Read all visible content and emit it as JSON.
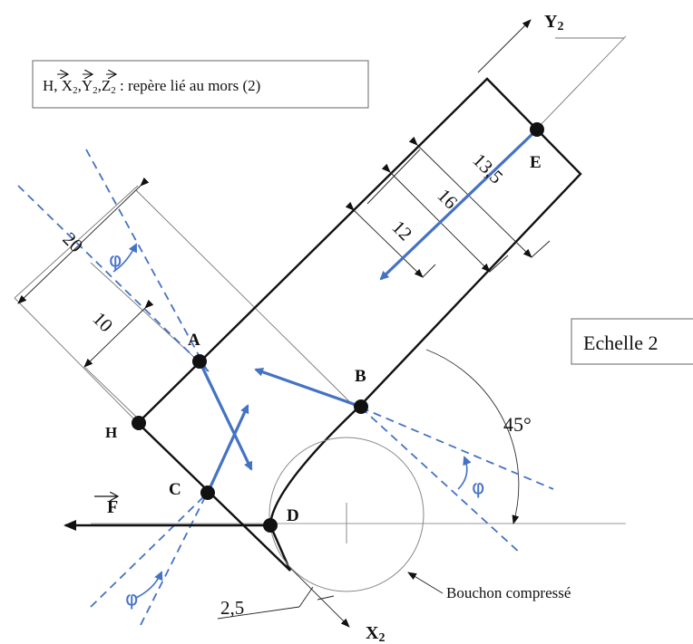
{
  "frame_label": "H, X2, Y2, Z2 : repère lié au mors (2)",
  "frame_label_parts": {
    "prefix": "H, ",
    "x": "X",
    "y": "Y",
    "z": "Z",
    "sub": "2",
    "suffix": " : repère lié au mors (2)"
  },
  "scale_label": "Echelle 2",
  "axes": {
    "y": "Y",
    "x": "X",
    "sub": "2"
  },
  "points": {
    "E": "E",
    "A": "A",
    "B": "B",
    "C": "C",
    "D": "D",
    "H": "H"
  },
  "force": {
    "letter": "F"
  },
  "dimensions": {
    "d20": "20",
    "d10": "10",
    "d135": "13,5",
    "d16": "16",
    "d12": "12",
    "d25": "2,5"
  },
  "angle_45": "45°",
  "phi": "φ",
  "cork_label": "Bouchon compressé",
  "colors": {
    "blue": "#4472c4",
    "black": "#111111"
  }
}
